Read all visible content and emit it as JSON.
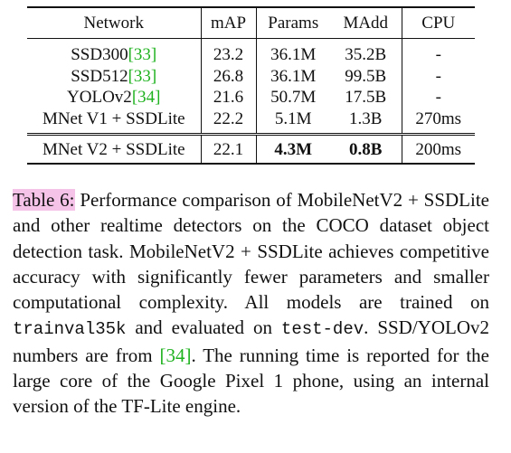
{
  "table": {
    "header": [
      "Network",
      "mAP",
      "Params",
      "MAdd",
      "CPU"
    ],
    "rows": [
      [
        {
          "text": "SSD300",
          "cite": "[33]"
        },
        "23.2",
        "36.1M",
        "35.2B",
        "-"
      ],
      [
        {
          "text": "SSD512",
          "cite": "[33]"
        },
        "26.8",
        "36.1M",
        "99.5B",
        "-"
      ],
      [
        {
          "text": "YOLOv2",
          "cite": "[34]"
        },
        "21.6",
        "50.7M",
        "17.5B",
        "-"
      ],
      [
        "MNet V1 + SSDLite",
        "22.2",
        "5.1M",
        "1.3B",
        "270ms"
      ]
    ],
    "highlight_row": [
      "MNet V2 + SSDLite",
      "22.1",
      {
        "text": "4.3M",
        "bold": true
      },
      {
        "text": "0.8B",
        "bold": true
      },
      "200ms"
    ]
  },
  "caption": {
    "label": "Table 6:",
    "parts": [
      {
        "text": " Performance comparison of MobileNetV2 + SSDLite and other realtime detectors on the COCO dataset object detection task. MobileNetV2 + SSDLite achieves competitive accuracy with significantly fewer parameters and smaller computational complexity. All models are trained on "
      },
      {
        "text": "trainval35k",
        "style": "mono"
      },
      {
        "text": " and evaluated on "
      },
      {
        "text": "test-dev",
        "style": "mono"
      },
      {
        "text": ". SSD/YOLOv2 numbers are from "
      },
      {
        "text": "[34]",
        "style": "cite"
      },
      {
        "text": ". The running time is reported for the large core of the Google Pixel 1 phone, using an internal version of the TF-Lite engine."
      }
    ]
  }
}
